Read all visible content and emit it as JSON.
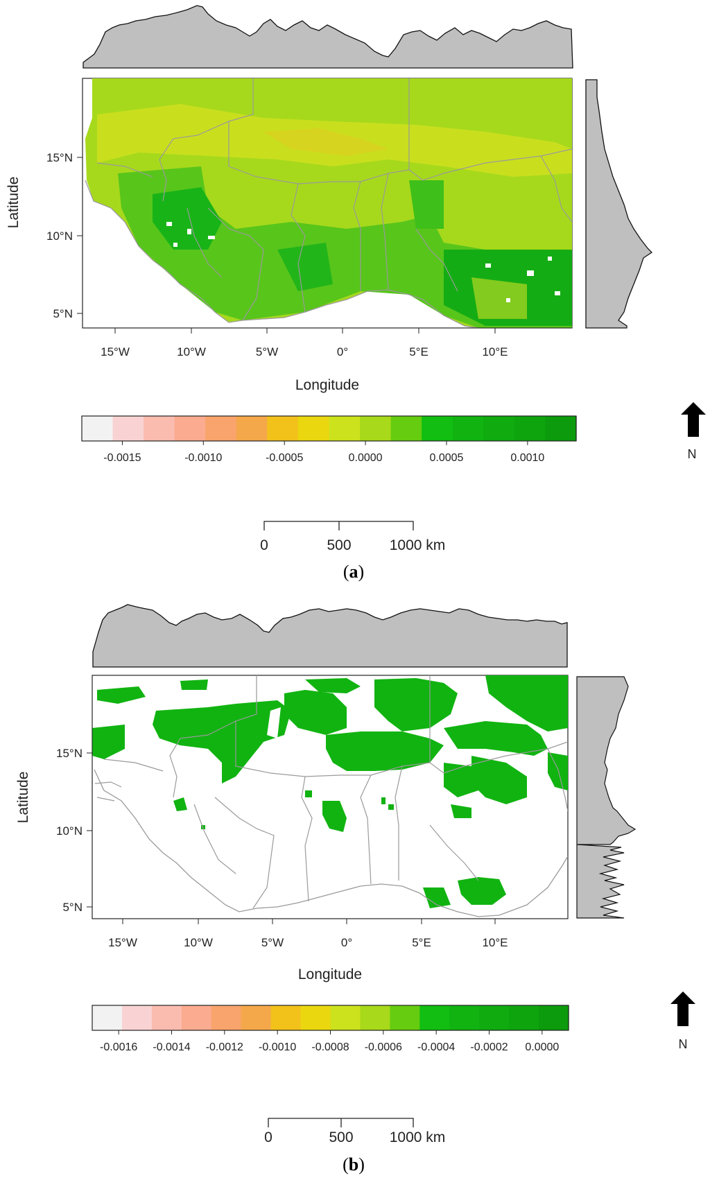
{
  "panels": [
    {
      "id": "a",
      "caption_letter": "a",
      "xlabel": "Longitude",
      "ylabel": "Latitude",
      "x_ticks": [
        "15°W",
        "10°W",
        "5°W",
        "0°",
        "5°E",
        "10°E"
      ],
      "y_ticks": [
        "15°N",
        "10°N",
        "5°N"
      ],
      "colorbar": {
        "colors": [
          "#f2f2f2",
          "#f9d3d3",
          "#fbbcb0",
          "#fbab8f",
          "#f8a46c",
          "#f5a84a",
          "#f2c21b",
          "#ebd70f",
          "#cce21d",
          "#a8d91a",
          "#66cc0f",
          "#11be11",
          "#10b310",
          "#0fab0f",
          "#0ea40e",
          "#0c9b0c"
        ],
        "tick_labels": [
          "-0.0015",
          "-0.0010",
          "-0.0005",
          "0.0000",
          "0.0005",
          "0.0010"
        ],
        "range": [
          -0.00175,
          0.0013
        ]
      },
      "north_label": "N",
      "scale_labels": [
        "0",
        "500",
        "1000 km"
      ]
    },
    {
      "id": "b",
      "caption_letter": "b",
      "xlabel": "Longitude",
      "ylabel": "Latitude",
      "x_ticks": [
        "15°W",
        "10°W",
        "5°W",
        "0°",
        "5°E",
        "10°E"
      ],
      "y_ticks": [
        "15°N",
        "10°N",
        "5°N"
      ],
      "colorbar": {
        "colors": [
          "#f2f2f2",
          "#f9d3d3",
          "#fbbcb0",
          "#fbab8f",
          "#f8a46c",
          "#f5a84a",
          "#f2c21b",
          "#ebd70f",
          "#cce21d",
          "#a8d91a",
          "#66cc0f",
          "#11be11",
          "#10b310",
          "#0fab0f",
          "#0ea40e",
          "#0c9b0c"
        ],
        "tick_labels": [
          "-0.0016",
          "-0.0014",
          "-0.0012",
          "-0.0010",
          "-0.0008",
          "-0.0006",
          "-0.0004",
          "-0.0002",
          "0.0000"
        ],
        "range": [
          -0.0017,
          0.0001
        ]
      },
      "north_label": "N",
      "scale_labels": [
        "0",
        "500",
        "1000 km"
      ]
    }
  ]
}
